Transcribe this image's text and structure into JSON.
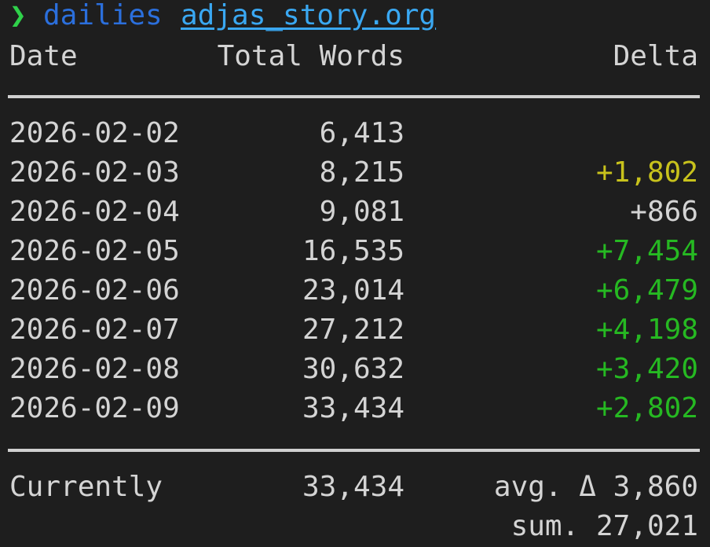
{
  "prompt": {
    "symbol": "❯",
    "command": "dailies",
    "argument": "adjas_story.org"
  },
  "table": {
    "headers": [
      "Date",
      "Total Words",
      "Delta"
    ],
    "rows": [
      {
        "date": "2026-02-02",
        "total": "6,413",
        "delta": null
      },
      {
        "date": "2026-02-03",
        "total": "8,215",
        "delta": "+1,802",
        "delta_color": "#c8c21c"
      },
      {
        "date": "2026-02-04",
        "total": "9,081",
        "delta": "+866",
        "delta_color": "#d4d4d4"
      },
      {
        "date": "2026-02-05",
        "total": "16,535",
        "delta": "+7,454",
        "delta_color": "#26b922"
      },
      {
        "date": "2026-02-06",
        "total": "23,014",
        "delta": "+6,479",
        "delta_color": "#26b922"
      },
      {
        "date": "2026-02-07",
        "total": "27,212",
        "delta": "+4,198",
        "delta_color": "#26b922"
      },
      {
        "date": "2026-02-08",
        "total": "30,632",
        "delta": "+3,420",
        "delta_color": "#26b922"
      },
      {
        "date": "2026-02-09",
        "total": "33,434",
        "delta": "+2,802",
        "delta_color": "#26b922"
      }
    ],
    "footer": {
      "label": "Currently",
      "total": "33,434",
      "average": "avg. Δ 3,860",
      "sum": "sum. 27,021"
    }
  }
}
